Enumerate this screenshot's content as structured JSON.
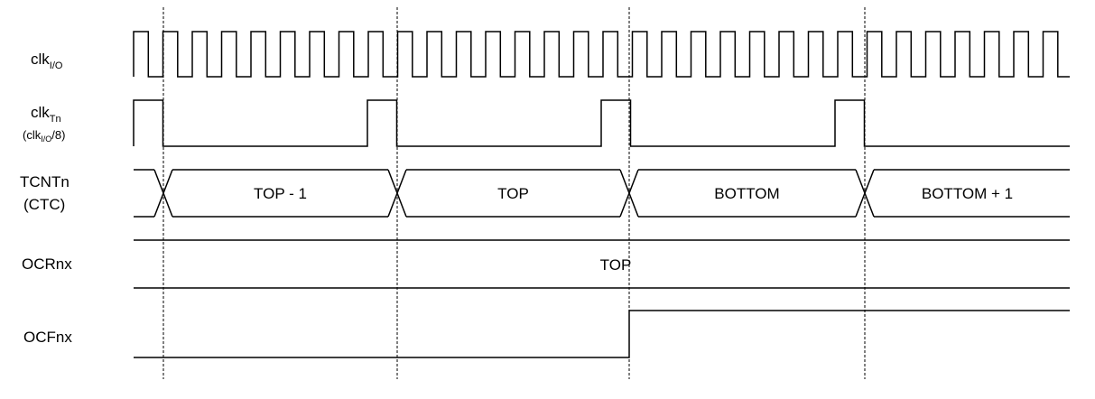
{
  "signals": {
    "clkio": {
      "base": "clk",
      "sub": "I/O"
    },
    "clktn": {
      "base": "clk",
      "sub": "Tn",
      "note_pre": "(clk",
      "note_sub": "I/O",
      "note_post": "/8)"
    },
    "tcntn": {
      "line1": "TCNTn",
      "line2": "(CTC)"
    },
    "ocrnx": {
      "label": "OCRnx"
    },
    "ocfnx": {
      "label": "OCFnx"
    }
  },
  "tcnt_segments": [
    "TOP - 1",
    "TOP",
    "BOTTOM",
    "BOTTOM + 1"
  ],
  "ocr_value": "TOP"
}
